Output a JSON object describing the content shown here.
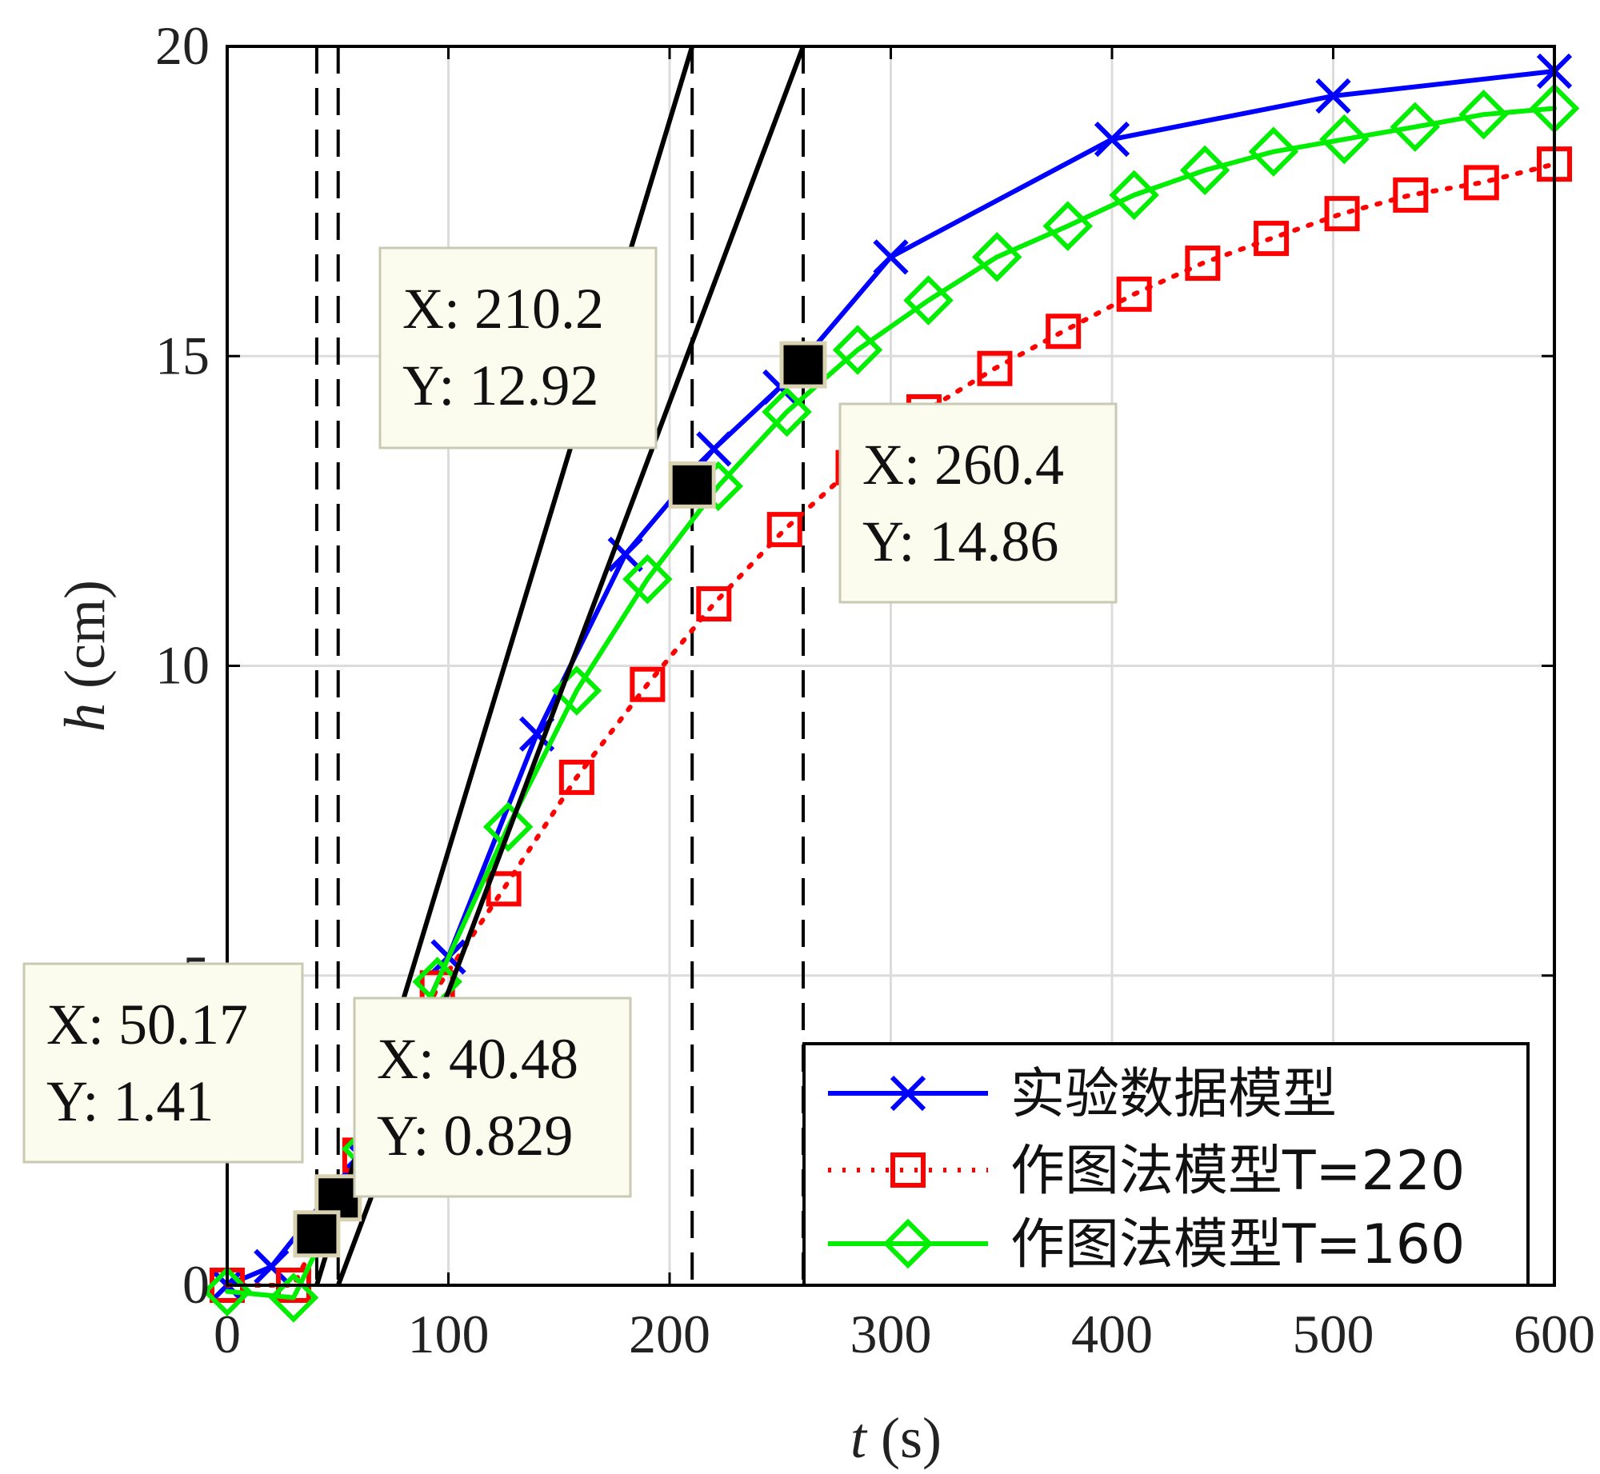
{
  "chart_data": {
    "type": "line",
    "xlabel_var": "t",
    "xlabel_unit": " (s)",
    "ylabel_var": "h",
    "ylabel_unit": " (cm)",
    "xlim": [
      0,
      600
    ],
    "ylim": [
      0,
      20
    ],
    "xticks": [
      0,
      100,
      200,
      300,
      400,
      500,
      600
    ],
    "yticks": [
      0,
      5,
      10,
      15,
      20
    ],
    "grid": true,
    "legend_position": "bottom-right",
    "series": [
      {
        "name": "实验数据模型",
        "color": "#0000ff",
        "line_style": "solid",
        "marker": "x",
        "x": [
          0,
          20,
          60,
          100,
          140,
          180,
          220,
          250,
          300,
          400,
          500,
          600
        ],
        "y": [
          0,
          0.3,
          2.1,
          5.3,
          8.9,
          11.8,
          13.5,
          14.5,
          16.6,
          18.5,
          19.2,
          19.6
        ]
      },
      {
        "name": "作图法模型T=220",
        "color": "#ff0000",
        "line_style": "dotted",
        "marker": "square",
        "x": [
          0,
          30,
          60,
          95,
          125,
          158,
          190,
          220,
          252,
          283,
          315,
          347,
          378,
          410,
          441,
          472,
          504,
          535,
          567,
          600
        ],
        "y": [
          0,
          0,
          2.1,
          4.8,
          6.4,
          8.2,
          9.7,
          11.0,
          12.2,
          13.2,
          14.1,
          14.8,
          15.4,
          16.0,
          16.5,
          16.9,
          17.3,
          17.6,
          17.8,
          18.1
        ]
      },
      {
        "name": "作图法模型T=160",
        "color": "#00ee00",
        "line_style": "solid",
        "marker": "diamond",
        "x": [
          0,
          30,
          63,
          95,
          127,
          158,
          190,
          222,
          253,
          285,
          317,
          348,
          380,
          410,
          442,
          473,
          505,
          537,
          568,
          600
        ],
        "y": [
          -0.1,
          -0.2,
          2.2,
          4.9,
          7.4,
          9.6,
          11.4,
          12.9,
          14.1,
          15.1,
          15.9,
          16.6,
          17.1,
          17.6,
          18.0,
          18.3,
          18.5,
          18.7,
          18.9,
          19.0
        ]
      }
    ],
    "tangent_lines": [
      {
        "x": [
          40.48,
          210.2
        ],
        "y": [
          0,
          20
        ]
      },
      {
        "x": [
          50.17,
          260.4
        ],
        "y": [
          0,
          20
        ]
      }
    ],
    "vlines": [
      40.48,
      50.17,
      210.2,
      260.4
    ],
    "datatips": [
      {
        "x": 210.2,
        "y": 12.92,
        "line1": "X: 210.2",
        "line2": "Y: 12.92",
        "box": "upper-left"
      },
      {
        "x": 260.4,
        "y": 14.86,
        "line1": "X: 260.4",
        "line2": "Y: 14.86",
        "box": "right"
      },
      {
        "x": 50.17,
        "y": 1.41,
        "line1": "X: 50.17",
        "line2": "Y: 1.41",
        "box": "lower-left"
      },
      {
        "x": 40.48,
        "y": 0.829,
        "line1": "X: 40.48",
        "line2": "Y: 0.829",
        "box": "lower-right"
      }
    ]
  }
}
